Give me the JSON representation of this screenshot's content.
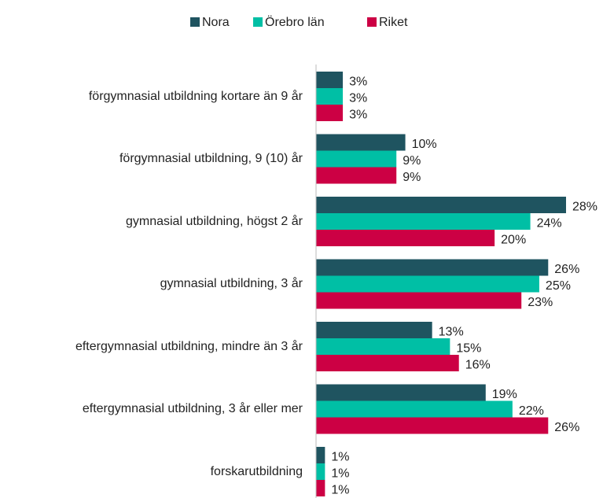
{
  "chart_data": {
    "type": "barh",
    "categories": [
      "förgymnasial utbildning kortare än 9 år",
      "förgymnasial utbildning, 9 (10) år",
      "gymnasial utbildning, högst 2 år",
      "gymnasial utbildning, 3 år",
      "eftergymnasial utbildning, mindre än 3 år",
      "eftergymnasial utbildning, 3 år eller mer",
      "forskarutbildning"
    ],
    "series": [
      {
        "name": "Nora",
        "color": "#1f5460",
        "values": [
          3,
          10,
          28,
          26,
          13,
          19,
          1
        ],
        "value_labels": [
          "3%",
          "10%",
          "28%",
          "26%",
          "13%",
          "19%",
          "1%"
        ]
      },
      {
        "name": "Örebro län",
        "color": "#00bfa5",
        "values": [
          3,
          9,
          24,
          25,
          15,
          22,
          1
        ],
        "value_labels": [
          "3%",
          "9%",
          "24%",
          "25%",
          "15%",
          "22%",
          "1%"
        ]
      },
      {
        "name": "Riket",
        "color": "#cc0044",
        "values": [
          3,
          9,
          20,
          23,
          16,
          26,
          1
        ],
        "value_labels": [
          "3%",
          "9%",
          "20%",
          "23%",
          "16%",
          "26%",
          "1%"
        ]
      }
    ],
    "legend": "top"
  }
}
